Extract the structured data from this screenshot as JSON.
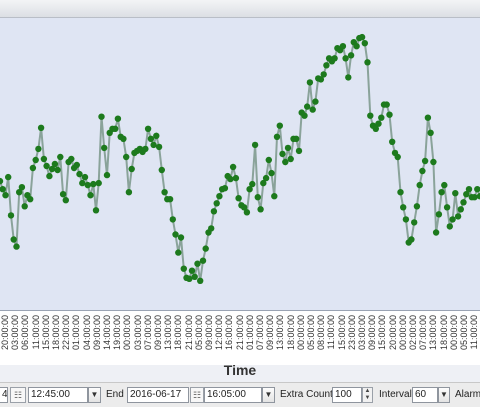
{
  "controls": {
    "start_date_partial": "4",
    "start_time": "12:45:00",
    "end_label": "End",
    "end_date": "2016-06-17",
    "end_time": "16:05:00",
    "extra_count_label": "Extra Count",
    "extra_count_value": "100",
    "interval_label": "Interval",
    "interval_value": "60",
    "alarms_label": "Alarms"
  },
  "icons": {
    "calendar": "calendar-icon",
    "dropdown": "chevron-down-icon",
    "spinner": "spinner-icon"
  },
  "colors": {
    "plot_background": "#dfe5f3",
    "line": "#8aa39a",
    "point": "#1d7a1d"
  },
  "chart_data": {
    "type": "line",
    "xlabel": "Time",
    "ylabel": "",
    "tick_labels": [
      "20:00:00",
      "03:00:00",
      "06:00:00",
      "11:00:00",
      "15:00:00",
      "18:00:00",
      "22:00:00",
      "01:00:00",
      "04:00:00",
      "09:00:00",
      "14:00:00",
      "19:00:00",
      "00:00:00",
      "03:00:00",
      "07:00:00",
      "09:00:00",
      "13:00:00",
      "18:00:00",
      "21:00:00",
      "05:00:00",
      "09:00:00",
      "12:00:00",
      "16:00:00",
      "21:00:00",
      "01:00:00",
      "07:00:00",
      "09:00:00",
      "13:00:00",
      "18:00:00",
      "00:00:00",
      "05:00:00",
      "08:00:00",
      "11:00:00",
      "15:00:00",
      "23:00:00",
      "03:00:00",
      "09:00:00",
      "15:00:00",
      "20:00:00",
      "00:00:00",
      "02:00:00",
      "07:00:00",
      "13:00:00",
      "18:00:00",
      "00:00:00",
      "05:00:00",
      "11:00:00"
    ],
    "series": [
      {
        "values": [
          128,
          120,
          114,
          132,
          94,
          70,
          63,
          117,
          122,
          103,
          114,
          110,
          141,
          149,
          160,
          181,
          150,
          143,
          133,
          140,
          145,
          139,
          152,
          115,
          109,
          147,
          150,
          141,
          144,
          135,
          126,
          132,
          124,
          114,
          125,
          99,
          126,
          192,
          161,
          134,
          176,
          180,
          180,
          190,
          172,
          170,
          152,
          117,
          140,
          156,
          158,
          160,
          157,
          160,
          180,
          170,
          164,
          173,
          162,
          139,
          117,
          110,
          110,
          90,
          75,
          57,
          72,
          41,
          32,
          31,
          39,
          33,
          46,
          29,
          49,
          61,
          77,
          81,
          98,
          106,
          113,
          120,
          121,
          133,
          130,
          142,
          131,
          111,
          104,
          102,
          97,
          120,
          125,
          164,
          112,
          100,
          126,
          131,
          149,
          136,
          113,
          172,
          183,
          155,
          147,
          161,
          150,
          170,
          170,
          158,
          196,
          193,
          202,
          226,
          199,
          207,
          230,
          229,
          234,
          243,
          250,
          247,
          250,
          260,
          258,
          262,
          250,
          231,
          253,
          266,
          262,
          270,
          271,
          265,
          246,
          193,
          183,
          180,
          185,
          191,
          204,
          204,
          194,
          167,
          156,
          152,
          117,
          102,
          90,
          67,
          70,
          87,
          103,
          124,
          138,
          148,
          191,
          176,
          147,
          77,
          95,
          117,
          124,
          102,
          83,
          90,
          116,
          93,
          100,
          107,
          115,
          120,
          112,
          112,
          120,
          113
        ]
      }
    ],
    "ylim": [
      0,
      290
    ]
  }
}
